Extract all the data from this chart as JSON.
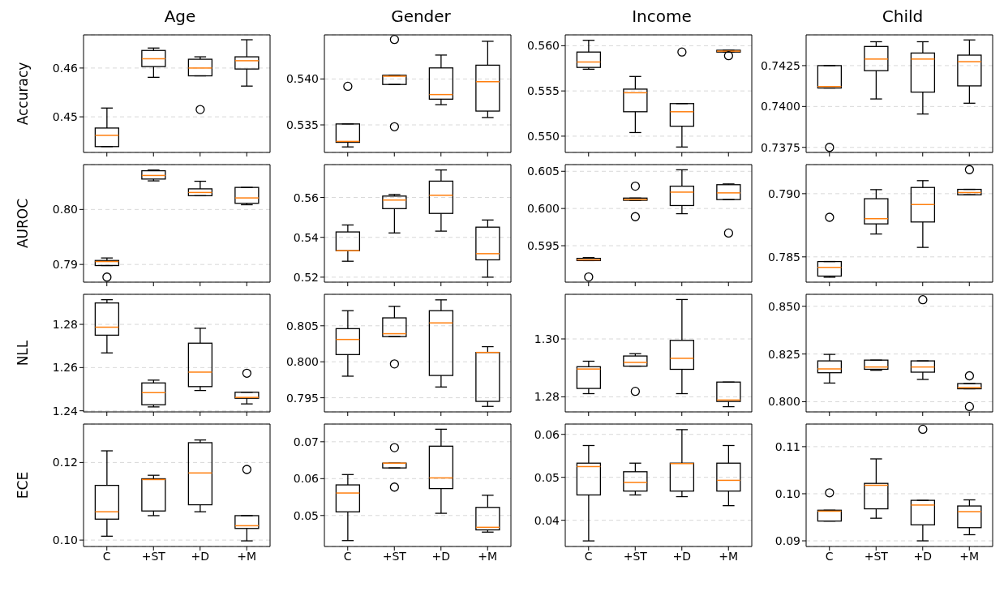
{
  "chart_data": [
    {
      "type": "box",
      "title": "Age",
      "ylabel": "Accuracy",
      "categories": [
        null,
        null,
        null,
        null
      ],
      "ylim": [
        0.4427,
        0.4668
      ],
      "yticks": [
        0.45,
        0.46
      ],
      "grid": "y",
      "tick_labels": "y",
      "boxes": [
        {
          "low": 0.4439,
          "q1": 0.4439,
          "median": 0.4462,
          "q3": 0.4477,
          "high": 0.4518
        },
        {
          "low": 0.4581,
          "q1": 0.4603,
          "median": 0.4619,
          "q3": 0.4636,
          "high": 0.4641
        },
        {
          "low": 0.4584,
          "q1": 0.4584,
          "median": 0.46,
          "q3": 0.4618,
          "high": 0.4623,
          "outliers": [
            0.4515
          ]
        },
        {
          "low": 0.4563,
          "q1": 0.4598,
          "median": 0.4615,
          "q3": 0.4623,
          "high": 0.4658
        }
      ]
    },
    {
      "type": "box",
      "title": "Gender",
      "categories": [
        null,
        null,
        null,
        null
      ],
      "ylim": [
        0.532,
        0.5448
      ],
      "yticks": [
        0.535,
        {
          "value": 0.54,
          "label": "0.540"
        }
      ],
      "grid": "y",
      "tick_labels": "y",
      "boxes": [
        {
          "low": 0.5326,
          "q1": 0.5331,
          "median": 0.5332,
          "q3": 0.5351,
          "high": 0.5351,
          "outliers": [
            0.5392
          ]
        },
        {
          "low": 0.5394,
          "q1": 0.5394,
          "median": 0.5403,
          "q3": 0.5404,
          "high": 0.5404,
          "outliers": [
            0.5443,
            0.5348
          ]
        },
        {
          "low": 0.5372,
          "q1": 0.5378,
          "median": 0.5383,
          "q3": 0.5412,
          "high": 0.5426
        },
        {
          "low": 0.5358,
          "q1": 0.5365,
          "median": 0.5397,
          "q3": 0.5415,
          "high": 0.5441
        }
      ]
    },
    {
      "type": "box",
      "title": "Income",
      "categories": [
        null,
        null,
        null,
        null
      ],
      "ylim": [
        0.5482,
        0.5612
      ],
      "yticks": [
        {
          "value": 0.55,
          "label": "0.550"
        },
        0.555,
        {
          "value": 0.56,
          "label": "0.560"
        }
      ],
      "grid": "y",
      "tick_labels": "y",
      "boxes": [
        {
          "low": 0.5574,
          "q1": 0.5576,
          "median": 0.5582,
          "q3": 0.5593,
          "high": 0.5606
        },
        {
          "low": 0.5504,
          "q1": 0.5527,
          "median": 0.5548,
          "q3": 0.5552,
          "high": 0.5566
        },
        {
          "low": 0.5488,
          "q1": 0.5511,
          "median": 0.5527,
          "q3": 0.5536,
          "high": 0.5536,
          "outliers": [
            0.5593
          ]
        },
        {
          "low": 0.5593,
          "q1": 0.5593,
          "median": 0.5594,
          "q3": 0.5595,
          "high": 0.5595,
          "outliers": [
            0.5589
          ]
        }
      ]
    },
    {
      "type": "box",
      "title": "Child",
      "categories": [
        null,
        null,
        null,
        null
      ],
      "ylim": [
        0.73719,
        0.74438
      ],
      "yticks": [
        0.7375,
        {
          "value": 0.74,
          "label": "0.7400"
        },
        0.7425
      ],
      "grid": "y",
      "tick_labels": "y",
      "boxes": [
        {
          "low": 0.74113,
          "q1": 0.74113,
          "median": 0.74122,
          "q3": 0.7425,
          "high": 0.7425,
          "outliers": [
            0.7375
          ]
        },
        {
          "low": 0.74046,
          "q1": 0.74219,
          "median": 0.7429,
          "q3": 0.74367,
          "high": 0.74396
        },
        {
          "low": 0.73954,
          "q1": 0.74088,
          "median": 0.7429,
          "q3": 0.74327,
          "high": 0.74396
        },
        {
          "low": 0.7402,
          "q1": 0.74126,
          "median": 0.74274,
          "q3": 0.74314,
          "high": 0.74407
        }
      ]
    },
    {
      "type": "box",
      "ylabel": "AUROC",
      "categories": [
        null,
        null,
        null,
        null
      ],
      "ylim": [
        0.78678,
        0.80816
      ],
      "yticks": [
        0.79,
        {
          "value": 0.8,
          "label": "0.80"
        }
      ],
      "grid": "y",
      "tick_labels": "y",
      "boxes": [
        {
          "low": 0.7898,
          "q1": 0.7898,
          "median": 0.79053,
          "q3": 0.79072,
          "high": 0.79118,
          "outliers": [
            0.7877
          ]
        },
        {
          "low": 0.8052,
          "q1": 0.80553,
          "median": 0.80618,
          "q3": 0.80704,
          "high": 0.80717
        },
        {
          "low": 0.8025,
          "q1": 0.8025,
          "median": 0.80309,
          "q3": 0.80375,
          "high": 0.80513
        },
        {
          "low": 0.80086,
          "q1": 0.80112,
          "median": 0.8021,
          "q3": 0.80401,
          "high": 0.80401
        }
      ]
    },
    {
      "type": "box",
      "categories": [
        null,
        null,
        null,
        null
      ],
      "ylim": [
        0.5175,
        0.5765
      ],
      "yticks": [
        0.52,
        0.54,
        0.56
      ],
      "grid": "y",
      "tick_labels": "y",
      "boxes": [
        {
          "low": 0.528,
          "q1": 0.5333,
          "median": 0.5333,
          "q3": 0.5427,
          "high": 0.5462
        },
        {
          "low": 0.5422,
          "q1": 0.5544,
          "median": 0.5587,
          "q3": 0.5607,
          "high": 0.5615
        },
        {
          "low": 0.5431,
          "q1": 0.552,
          "median": 0.5611,
          "q3": 0.5682,
          "high": 0.5738
        },
        {
          "low": 0.52,
          "q1": 0.5287,
          "median": 0.5318,
          "q3": 0.5451,
          "high": 0.5487
        }
      ]
    },
    {
      "type": "box",
      "categories": [
        null,
        null,
        null,
        null
      ],
      "ylim": [
        0.5901,
        0.6059
      ],
      "yticks": [
        0.595,
        {
          "value": 0.6,
          "label": "0.600"
        },
        0.605
      ],
      "grid": "y",
      "tick_labels": "y",
      "boxes": [
        {
          "low": 0.593,
          "q1": 0.593,
          "median": 0.5931,
          "q3": 0.5933,
          "high": 0.5934,
          "outliers": [
            0.5908
          ]
        },
        {
          "low": 0.6011,
          "q1": 0.6011,
          "median": 0.6012,
          "q3": 0.6014,
          "high": 0.6014,
          "outliers": [
            0.603,
            0.5989
          ]
        },
        {
          "low": 0.5993,
          "q1": 0.6004,
          "median": 0.6022,
          "q3": 0.603,
          "high": 0.6052
        },
        {
          "low": 0.6012,
          "q1": 0.6012,
          "median": 0.6021,
          "q3": 0.6032,
          "high": 0.6033,
          "outliers": [
            0.5967
          ]
        }
      ]
    },
    {
      "type": "box",
      "categories": [
        null,
        null,
        null,
        null
      ],
      "ylim": [
        0.783,
        0.7923
      ],
      "yticks": [
        0.785,
        {
          "value": 0.79,
          "label": "0.790"
        }
      ],
      "grid": "y",
      "tick_labels": "y",
      "boxes": [
        {
          "low": 0.78339,
          "q1": 0.78348,
          "median": 0.78417,
          "q3": 0.78463,
          "high": 0.78463,
          "outliers": [
            0.78813
          ]
        },
        {
          "low": 0.78681,
          "q1": 0.78761,
          "median": 0.78802,
          "q3": 0.7896,
          "high": 0.79032
        },
        {
          "low": 0.78575,
          "q1": 0.78776,
          "median": 0.78914,
          "q3": 0.79049,
          "high": 0.79103
        },
        {
          "low": 0.78991,
          "q1": 0.78991,
          "median": 0.79009,
          "q3": 0.79034,
          "high": 0.79034,
          "outliers": [
            0.7919
          ]
        }
      ]
    },
    {
      "type": "box",
      "ylabel": "NLL",
      "categories": [
        null,
        null,
        null,
        null
      ],
      "ylim": [
        1.2395,
        1.2939
      ],
      "yticks": [
        1.24,
        1.26,
        1.28
      ],
      "grid": "y",
      "tick_labels": "y",
      "boxes": [
        {
          "low": 1.2668,
          "q1": 1.275,
          "median": 1.2787,
          "q3": 1.2899,
          "high": 1.2914
        },
        {
          "low": 1.2418,
          "q1": 1.2428,
          "median": 1.2484,
          "q3": 1.2529,
          "high": 1.2542
        },
        {
          "low": 1.2494,
          "q1": 1.2512,
          "median": 1.2579,
          "q3": 1.2713,
          "high": 1.2782
        },
        {
          "low": 1.2432,
          "q1": 1.2458,
          "median": 1.2462,
          "q3": 1.2486,
          "high": 1.2486,
          "outliers": [
            1.2574
          ]
        }
      ]
    },
    {
      "type": "box",
      "categories": [
        null,
        null,
        null,
        null
      ],
      "ylim": [
        0.79304,
        0.80937
      ],
      "yticks": [
        0.795,
        {
          "value": 0.8,
          "label": "0.800"
        },
        0.805
      ],
      "grid": "y",
      "tick_labels": "y",
      "boxes": [
        {
          "low": 0.798,
          "q1": 0.801,
          "median": 0.8031,
          "q3": 0.8046,
          "high": 0.8071
        },
        {
          "low": 0.8035,
          "q1": 0.8035,
          "median": 0.8039,
          "q3": 0.8061,
          "high": 0.8077,
          "outliers": [
            0.7997
          ]
        },
        {
          "low": 0.7965,
          "q1": 0.7981,
          "median": 0.8054,
          "q3": 0.8071,
          "high": 0.8086
        },
        {
          "low": 0.7938,
          "q1": 0.7945,
          "median": 0.8013,
          "q3": 0.8013,
          "high": 0.8021
        }
      ]
    },
    {
      "type": "box",
      "categories": [
        null,
        null,
        null,
        null
      ],
      "ylim": [
        1.2748,
        1.3154
      ],
      "yticks": [
        1.28,
        {
          "value": 1.3,
          "label": "1.30"
        }
      ],
      "grid": "y",
      "tick_labels": "y",
      "boxes": [
        {
          "low": 1.2811,
          "q1": 1.2829,
          "median": 1.2896,
          "q3": 1.2904,
          "high": 1.2923
        },
        {
          "low": 1.2906,
          "q1": 1.2906,
          "median": 1.2919,
          "q3": 1.2941,
          "high": 1.2949,
          "outliers": [
            1.2819
          ]
        },
        {
          "low": 1.2811,
          "q1": 1.2895,
          "median": 1.2933,
          "q3": 1.2995,
          "high": 1.3136
        },
        {
          "low": 1.2766,
          "q1": 1.2784,
          "median": 1.2789,
          "q3": 1.2851,
          "high": 1.2851
        }
      ]
    },
    {
      "type": "box",
      "categories": [
        null,
        null,
        null,
        null
      ],
      "ylim": [
        0.7947,
        0.85625
      ],
      "yticks": [
        {
          "value": 0.8,
          "label": "0.800"
        },
        0.825,
        {
          "value": 0.85,
          "label": "0.850"
        }
      ],
      "grid": "y",
      "tick_labels": "y",
      "boxes": [
        {
          "low": 0.8098,
          "q1": 0.8152,
          "median": 0.8172,
          "q3": 0.8214,
          "high": 0.8248
        },
        {
          "low": 0.8165,
          "q1": 0.817,
          "median": 0.8182,
          "q3": 0.8218,
          "high": 0.8218
        },
        {
          "low": 0.8117,
          "q1": 0.8155,
          "median": 0.8182,
          "q3": 0.8214,
          "high": 0.8214,
          "outliers": [
            0.8534
          ]
        },
        {
          "low": 0.8068,
          "q1": 0.8068,
          "median": 0.8074,
          "q3": 0.8095,
          "high": 0.8095,
          "outliers": [
            0.8136,
            0.7975
          ]
        }
      ]
    },
    {
      "type": "box",
      "ylabel": "ECE",
      "categories": [
        "C",
        "+ST",
        "+D",
        "+M"
      ],
      "ylim": [
        0.09835,
        0.1299
      ],
      "yticks": [
        {
          "value": 0.1,
          "label": "0.10"
        },
        0.12
      ],
      "grid": "y",
      "boxes": [
        {
          "low": 0.101,
          "q1": 0.1054,
          "median": 0.1073,
          "q3": 0.1141,
          "high": 0.123
        },
        {
          "low": 0.1063,
          "q1": 0.1075,
          "median": 0.1156,
          "q3": 0.1158,
          "high": 0.1167
        },
        {
          "low": 0.1073,
          "q1": 0.1091,
          "median": 0.1173,
          "q3": 0.1251,
          "high": 0.1258
        },
        {
          "low": 0.0998,
          "q1": 0.103,
          "median": 0.1037,
          "q3": 0.1063,
          "high": 0.1063,
          "outliers": [
            0.1182
          ]
        }
      ]
    },
    {
      "type": "box",
      "categories": [
        "C",
        "+ST",
        "+D",
        "+M"
      ],
      "ylim": [
        0.0416,
        0.0748
      ],
      "yticks": [
        0.05,
        0.06,
        0.07
      ],
      "grid": "y",
      "boxes": [
        {
          "low": 0.0432,
          "q1": 0.051,
          "median": 0.0561,
          "q3": 0.0583,
          "high": 0.0611
        },
        {
          "low": 0.0629,
          "q1": 0.0629,
          "median": 0.0642,
          "q3": 0.0642,
          "high": 0.0642,
          "outliers": [
            0.0684,
            0.0577
          ]
        },
        {
          "low": 0.0506,
          "q1": 0.0573,
          "median": 0.0602,
          "q3": 0.0688,
          "high": 0.0734
        },
        {
          "low": 0.0455,
          "q1": 0.0461,
          "median": 0.0468,
          "q3": 0.0522,
          "high": 0.0555
        }
      ]
    },
    {
      "type": "box",
      "categories": [
        "C",
        "+ST",
        "+D",
        "+M"
      ],
      "ylim": [
        0.0339,
        0.0624
      ],
      "yticks": [
        0.04,
        0.05,
        0.06
      ],
      "grid": "y",
      "boxes": [
        {
          "low": 0.0352,
          "q1": 0.0459,
          "median": 0.0525,
          "q3": 0.0533,
          "high": 0.0574
        },
        {
          "low": 0.0459,
          "q1": 0.0468,
          "median": 0.0488,
          "q3": 0.0513,
          "high": 0.0533
        },
        {
          "low": 0.0455,
          "q1": 0.0468,
          "median": 0.0532,
          "q3": 0.0533,
          "high": 0.0611
        },
        {
          "low": 0.0434,
          "q1": 0.0468,
          "median": 0.0493,
          "q3": 0.0533,
          "high": 0.0574
        }
      ]
    },
    {
      "type": "box",
      "categories": [
        "C",
        "+ST",
        "+D",
        "+M"
      ],
      "ylim": [
        0.0888,
        0.1148
      ],
      "yticks": [
        0.09,
        {
          "value": 0.1,
          "label": "0.10"
        },
        0.11
      ],
      "grid": "y",
      "boxes": [
        {
          "low": 0.0942,
          "q1": 0.0942,
          "median": 0.0963,
          "q3": 0.0965,
          "high": 0.0965,
          "outliers": [
            0.1002
          ]
        },
        {
          "low": 0.0948,
          "q1": 0.0968,
          "median": 0.1018,
          "q3": 0.1022,
          "high": 0.1074
        },
        {
          "low": 0.09,
          "q1": 0.0934,
          "median": 0.0976,
          "q3": 0.0986,
          "high": 0.0986,
          "outliers": [
            0.1137
          ]
        },
        {
          "low": 0.0913,
          "q1": 0.0928,
          "median": 0.0962,
          "q3": 0.0974,
          "high": 0.0987
        }
      ]
    }
  ]
}
